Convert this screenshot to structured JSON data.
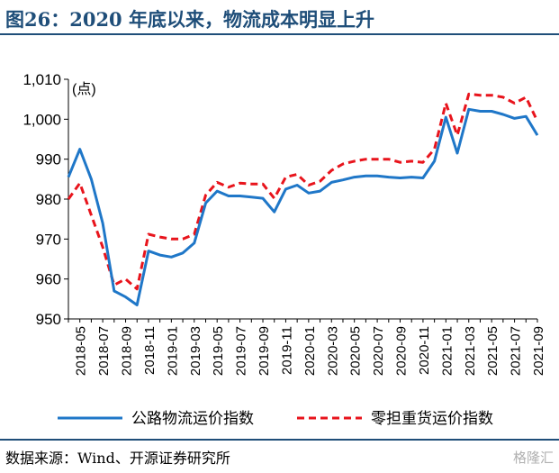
{
  "header": {
    "title": "图26：2020 年底以来，物流成本明显上升"
  },
  "footer": {
    "source": "数据来源：Wind、开源证券研究所",
    "watermark": "格隆汇"
  },
  "chart_data": {
    "type": "line",
    "title": "图26：2020 年底以来，物流成本明显上升",
    "ylabel": "(点)",
    "ylim": [
      950,
      1010
    ],
    "yticks": [
      950,
      960,
      970,
      980,
      990,
      1000,
      1010
    ],
    "ytick_labels": [
      "950",
      "960",
      "970",
      "980",
      "990",
      "1,000",
      "1,010"
    ],
    "x_ticks": [
      "2018-05",
      "2018-07",
      "2018-09",
      "2018-11",
      "2019-01",
      "2019-03",
      "2019-05",
      "2019-07",
      "2019-09",
      "2019-11",
      "2020-01",
      "2020-03",
      "2020-05",
      "2020-07",
      "2020-09",
      "2020-11",
      "2021-01",
      "2021-03",
      "2021-05",
      "2021-07",
      "2021-09"
    ],
    "legend_position": "bottom",
    "grid": false,
    "series": [
      {
        "name": "公路物流运价指数",
        "color": "#1f77c8",
        "style": "solid",
        "values": [
          [
            "2018-04",
            985.5
          ],
          [
            "2018-05",
            992.5
          ],
          [
            "2018-06",
            985.0
          ],
          [
            "2018-07",
            974.0
          ],
          [
            "2018-08",
            957.0
          ],
          [
            "2018-09",
            955.5
          ],
          [
            "2018-10",
            953.5
          ],
          [
            "2018-11",
            967.0
          ],
          [
            "2018-12",
            966.0
          ],
          [
            "2019-01",
            965.5
          ],
          [
            "2019-02",
            966.5
          ],
          [
            "2019-03",
            969.0
          ],
          [
            "2019-04",
            979.0
          ],
          [
            "2019-05",
            982.0
          ],
          [
            "2019-06",
            980.8
          ],
          [
            "2019-07",
            980.8
          ],
          [
            "2019-08",
            980.5
          ],
          [
            "2019-09",
            980.2
          ],
          [
            "2019-10",
            976.8
          ],
          [
            "2019-11",
            982.5
          ],
          [
            "2019-12",
            983.5
          ],
          [
            "2020-01",
            981.5
          ],
          [
            "2020-02",
            982.0
          ],
          [
            "2020-03",
            984.2
          ],
          [
            "2020-04",
            984.8
          ],
          [
            "2020-05",
            985.5
          ],
          [
            "2020-06",
            985.8
          ],
          [
            "2020-07",
            985.8
          ],
          [
            "2020-08",
            985.5
          ],
          [
            "2020-09",
            985.3
          ],
          [
            "2020-10",
            985.5
          ],
          [
            "2020-11",
            985.3
          ],
          [
            "2020-12",
            989.5
          ],
          [
            "2021-01",
            1000.5
          ],
          [
            "2021-02",
            991.5
          ],
          [
            "2021-03",
            1002.5
          ],
          [
            "2021-04",
            1002.0
          ],
          [
            "2021-05",
            1002.0
          ],
          [
            "2021-06",
            1001.2
          ],
          [
            "2021-07",
            1000.2
          ],
          [
            "2021-08",
            1000.7
          ],
          [
            "2021-09",
            996.0
          ]
        ]
      },
      {
        "name": "零担重货运价指数",
        "color": "#e8141c",
        "style": "dashed",
        "values": [
          [
            "2018-04",
            980.0
          ],
          [
            "2018-05",
            984.0
          ],
          [
            "2018-06",
            976.0
          ],
          [
            "2018-07",
            968.0
          ],
          [
            "2018-08",
            958.5
          ],
          [
            "2018-09",
            960.0
          ],
          [
            "2018-10",
            957.5
          ],
          [
            "2018-11",
            971.2
          ],
          [
            "2018-12",
            970.5
          ],
          [
            "2019-01",
            970.0
          ],
          [
            "2019-02",
            970.0
          ],
          [
            "2019-03",
            971.2
          ],
          [
            "2019-04",
            981.0
          ],
          [
            "2019-05",
            984.2
          ],
          [
            "2019-06",
            983.0
          ],
          [
            "2019-07",
            984.0
          ],
          [
            "2019-08",
            983.8
          ],
          [
            "2019-09",
            983.8
          ],
          [
            "2019-10",
            980.2
          ],
          [
            "2019-11",
            985.5
          ],
          [
            "2019-12",
            986.2
          ],
          [
            "2020-01",
            983.5
          ],
          [
            "2020-02",
            984.5
          ],
          [
            "2020-03",
            987.2
          ],
          [
            "2020-04",
            988.8
          ],
          [
            "2020-05",
            989.5
          ],
          [
            "2020-06",
            990.0
          ],
          [
            "2020-07",
            990.0
          ],
          [
            "2020-08",
            990.0
          ],
          [
            "2020-09",
            989.2
          ],
          [
            "2020-10",
            989.5
          ],
          [
            "2020-11",
            989.2
          ],
          [
            "2020-12",
            992.5
          ],
          [
            "2021-01",
            1004.0
          ],
          [
            "2021-02",
            996.0
          ],
          [
            "2021-03",
            1006.3
          ],
          [
            "2021-04",
            1006.0
          ],
          [
            "2021-05",
            1006.0
          ],
          [
            "2021-06",
            1005.5
          ],
          [
            "2021-07",
            1004.0
          ],
          [
            "2021-08",
            1005.5
          ],
          [
            "2021-09",
            999.5
          ]
        ]
      }
    ]
  }
}
